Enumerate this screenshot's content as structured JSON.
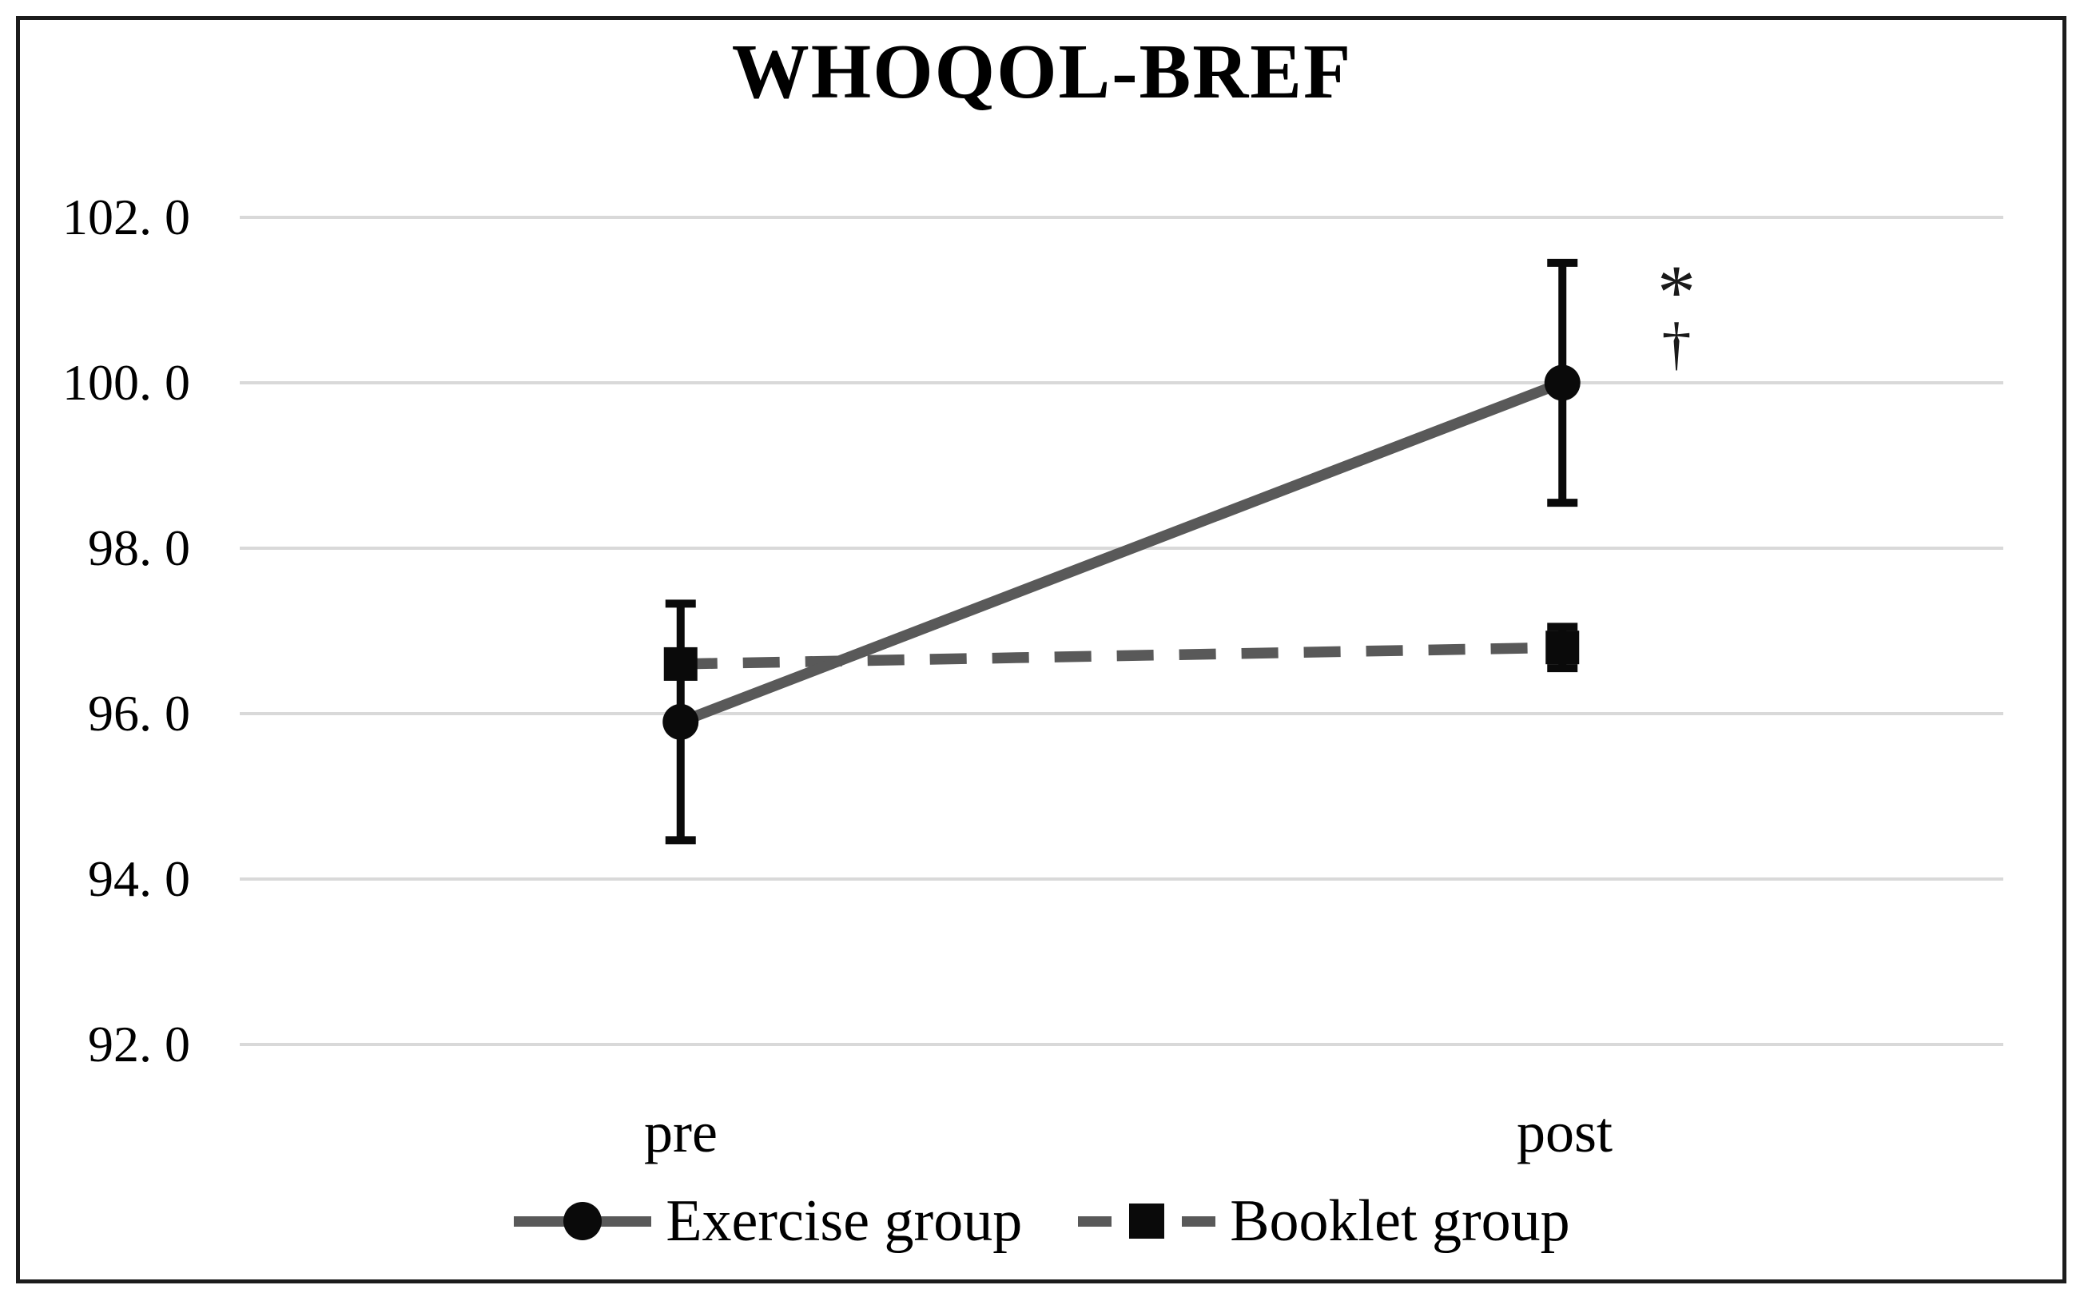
{
  "figure": {
    "title": "WHOQOL-BREF",
    "background": "#ffffff",
    "border_color": "#1c1c1c"
  },
  "chart_data": {
    "type": "line",
    "title": "WHOQOL-BREF",
    "categories": [
      "pre",
      "post"
    ],
    "series": [
      {
        "name": "Exercise group",
        "line_style": "solid",
        "marker": "circle",
        "values": [
          95.9,
          100.0
        ],
        "error_plus": [
          1.43,
          1.45
        ],
        "error_minus": [
          1.43,
          1.45
        ],
        "line_color": "#595959",
        "marker_color": "#0a0a0a"
      },
      {
        "name": "Booklet group",
        "line_style": "dashed",
        "marker": "square",
        "values": [
          96.6,
          96.8
        ],
        "error_plus": [
          0,
          0.25
        ],
        "error_minus": [
          0,
          0.25
        ],
        "line_color": "#595959",
        "marker_color": "#0a0a0a"
      }
    ],
    "yticks": [
      102,
      100,
      98,
      96,
      94,
      92
    ],
    "ytick_labels": [
      "102. 0",
      "100. 0",
      "98. 0",
      "96. 0",
      "94. 0",
      "92. 0"
    ],
    "ylim": [
      91.2,
      102.3
    ],
    "grid": true,
    "gridline_color": "#d9d9d9",
    "error_bar_color": "#0a0a0a",
    "legend_position": "bottom",
    "annotations": [
      {
        "text": "*",
        "near": "Exercise group post",
        "y_value": 101.2
      },
      {
        "text": "†",
        "near": "Exercise group post",
        "y_value": 100.5
      }
    ]
  }
}
